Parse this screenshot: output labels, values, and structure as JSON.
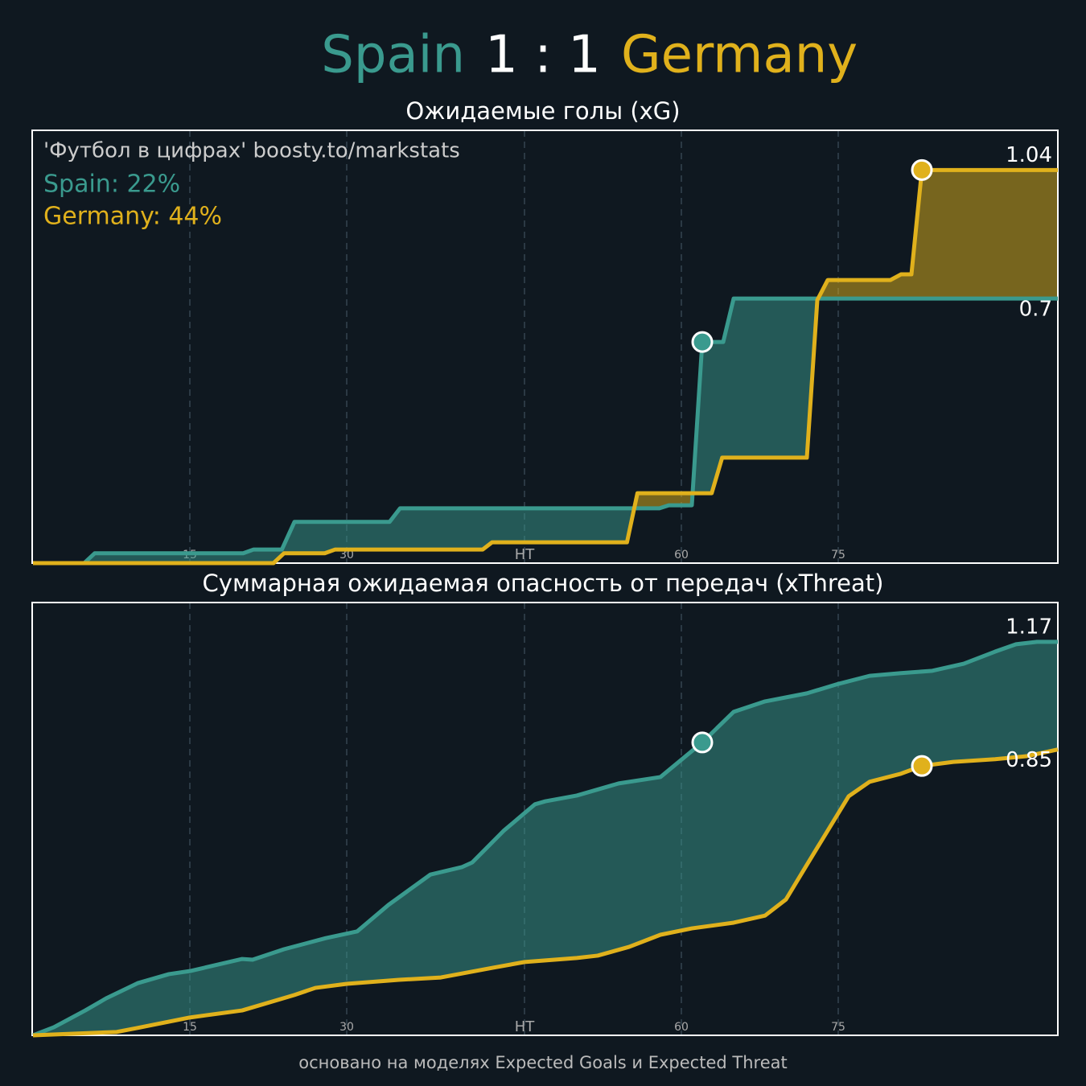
{
  "header": {
    "home": "Spain",
    "score": "1 : 1",
    "away": "Germany"
  },
  "footer": "основано на моделях Expected Goals и Expected Threat",
  "chart_data": [
    {
      "type": "line",
      "title": "Ожидаемые голы (xG)",
      "annotations": [
        {
          "text": "'Футбол в цифрах' boosty.to/markstats",
          "color": "#cccccc"
        },
        {
          "text": "Spain: 22%",
          "color": "#3a9a8e"
        },
        {
          "text": "Germany: 44%",
          "color": "#e0b11c"
        }
      ],
      "xlim": [
        0,
        98
      ],
      "ylim": [
        0,
        1.145
      ],
      "xticks": [
        15,
        30,
        {
          "value": 47,
          "label": "HT"
        },
        {
          "value": 62,
          "label": "60"
        },
        {
          "value": 77,
          "label": "75"
        }
      ],
      "series": [
        {
          "name": "Spain",
          "color": "#3a9a8e",
          "x": [
            0,
            4.9,
            5.9,
            20.1,
            21.1,
            23.8,
            25,
            34.1,
            35.1,
            59.9,
            60.8,
            63,
            64,
            66,
            67,
            98
          ],
          "values": [
            0,
            0,
            0.026,
            0.026,
            0.036,
            0.036,
            0.109,
            0.109,
            0.145,
            0.145,
            0.153,
            0.153,
            0.585,
            0.585,
            0.7,
            0.7
          ],
          "goals": [
            {
              "x": 64,
              "value": 0.585
            }
          ]
        },
        {
          "name": "Germany",
          "color": "#e0b11c",
          "x": [
            0,
            23,
            24,
            27.9,
            28.9,
            43,
            43.9,
            56.8,
            57.8,
            64.9,
            65.9,
            74,
            75,
            76,
            82,
            83,
            84,
            85,
            98
          ],
          "values": [
            0,
            0,
            0.026,
            0.026,
            0.036,
            0.036,
            0.055,
            0.055,
            0.185,
            0.185,
            0.279,
            0.279,
            0.696,
            0.749,
            0.749,
            0.764,
            0.764,
            1.04,
            1.04
          ],
          "goals": [
            {
              "x": 85,
              "value": 1.04
            }
          ]
        }
      ]
    },
    {
      "type": "line",
      "title": "Суммарная ожидаемая опасность от передач (xThreat)",
      "xlim": [
        0,
        98
      ],
      "ylim": [
        0,
        1.287
      ],
      "xticks": [
        15,
        30,
        {
          "value": 47,
          "label": "HT"
        },
        {
          "value": 62,
          "label": "60"
        },
        {
          "value": 77,
          "label": "75"
        }
      ],
      "series": [
        {
          "name": "Spain",
          "color": "#3a9a8e",
          "x": [
            0,
            2,
            5,
            7,
            10,
            13,
            15,
            20,
            21,
            24,
            28,
            31,
            34,
            38,
            41,
            42,
            45,
            48,
            49,
            52,
            56,
            60,
            64,
            67,
            70,
            74,
            77,
            80,
            83,
            86,
            89,
            92,
            94,
            96,
            98
          ],
          "values": [
            0,
            0.024,
            0.074,
            0.11,
            0.155,
            0.182,
            0.191,
            0.227,
            0.225,
            0.256,
            0.289,
            0.309,
            0.388,
            0.478,
            0.5,
            0.514,
            0.608,
            0.687,
            0.696,
            0.713,
            0.749,
            0.768,
            0.871,
            0.962,
            0.993,
            1.017,
            1.045,
            1.069,
            1.077,
            1.084,
            1.105,
            1.141,
            1.163,
            1.17,
            1.17
          ],
          "goals": [
            {
              "x": 64,
              "value": 0.871
            }
          ]
        },
        {
          "name": "Germany",
          "color": "#e0b11c",
          "x": [
            0,
            8,
            10,
            15,
            20,
            25,
            27,
            30,
            35,
            39,
            44,
            47,
            52,
            54,
            57,
            60,
            63,
            67,
            70,
            72,
            74,
            78,
            80,
            83,
            85,
            88,
            92,
            95,
            98
          ],
          "values": [
            0,
            0.01,
            0.022,
            0.053,
            0.074,
            0.12,
            0.141,
            0.153,
            0.165,
            0.172,
            0.201,
            0.218,
            0.23,
            0.237,
            0.263,
            0.299,
            0.318,
            0.335,
            0.356,
            0.404,
            0.507,
            0.711,
            0.754,
            0.778,
            0.801,
            0.813,
            0.821,
            0.83,
            0.85
          ],
          "goals": [
            {
              "x": 85,
              "value": 0.801
            }
          ]
        }
      ]
    }
  ]
}
